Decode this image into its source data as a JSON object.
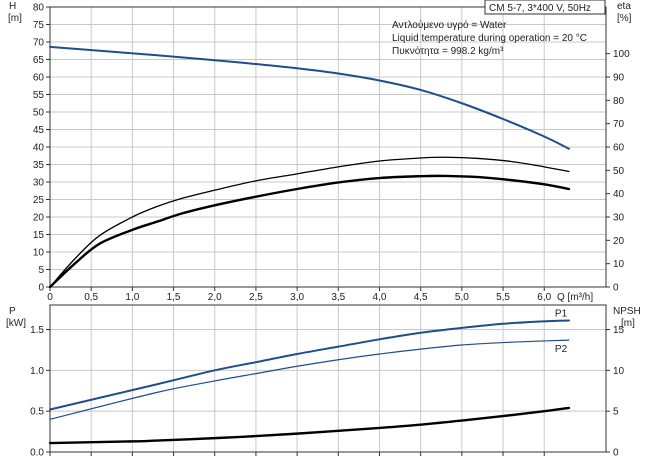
{
  "chart_data": [
    {
      "type": "line",
      "title": "CM 5-7, 3*400 V, 50Hz",
      "annotations": [
        "Αντλούμενο υγρό = Water",
        "Liquid temperature during operation = 20 °C",
        "Πυκνότητα = 998.2 kg/m³"
      ],
      "xlabel": "Q [m³/h]",
      "xlim": [
        0,
        6.75
      ],
      "x_ticks": [
        "0",
        "0,5",
        "1,0",
        "1,5",
        "2,0",
        "2,5",
        "3,0",
        "3,5",
        "4,0",
        "4,5",
        "5,0",
        "5,5",
        "6,0"
      ],
      "y_left": {
        "label": "H",
        "unit": "[m]",
        "ylim": [
          0,
          80
        ],
        "ticks": [
          "0",
          "5",
          "10",
          "15",
          "20",
          "25",
          "30",
          "35",
          "40",
          "45",
          "50",
          "55",
          "60",
          "65",
          "70",
          "75",
          "80"
        ]
      },
      "y_right": {
        "label": "eta",
        "unit": "[%]",
        "ylim": [
          0,
          120
        ],
        "ticks": [
          "0",
          "10",
          "20",
          "30",
          "40",
          "50",
          "60",
          "70",
          "80",
          "90",
          "100"
        ]
      },
      "grid": true,
      "series": [
        {
          "axis": "left",
          "color": "#1f4e8c",
          "width": 2,
          "style": "solid",
          "x": [
            0,
            1.3,
            2,
            2.5,
            3,
            3.5,
            4,
            4.5,
            5,
            5.5,
            6,
            6.3
          ],
          "y": [
            68.6,
            66.2,
            64.8,
            63.7,
            62.5,
            61.0,
            59.0,
            56.3,
            52.5,
            48.0,
            43.0,
            39.5
          ]
        },
        {
          "axis": "right",
          "color": "#000000",
          "width": 1.3,
          "style": "solid",
          "x": [
            0,
            0.3,
            0.6,
            1.0,
            1.3,
            1.6,
            2.0,
            2.5,
            3.0,
            3.5,
            4.0,
            4.5,
            4.8,
            5.2,
            5.6,
            6.0,
            6.3
          ],
          "y": [
            0,
            12,
            22,
            30,
            34.5,
            38,
            41.5,
            45.5,
            48.5,
            51.5,
            54,
            55.3,
            55.6,
            55.1,
            53.8,
            51.5,
            49.5
          ]
        },
        {
          "axis": "right",
          "color": "#000000",
          "width": 2.4,
          "style": "solid",
          "x": [
            0,
            0.3,
            0.6,
            1.0,
            1.3,
            1.6,
            2.0,
            2.5,
            3.0,
            3.5,
            4.0,
            4.5,
            4.8,
            5.2,
            5.6,
            6.0,
            6.3
          ],
          "y": [
            0,
            10,
            18.5,
            24.5,
            28,
            31.5,
            35,
            38.7,
            42,
            44.8,
            46.7,
            47.5,
            47.6,
            47.1,
            45.8,
            44.0,
            42.0
          ]
        }
      ]
    },
    {
      "type": "line",
      "xlim": [
        0,
        6.75
      ],
      "y_left": {
        "label": "P",
        "unit": "[kW]",
        "ylim": [
          0,
          1.8
        ],
        "ticks": [
          "0.0",
          "0.5",
          "1.0",
          "1.5"
        ]
      },
      "y_right": {
        "label": "NPSH",
        "unit": "[m]",
        "ylim": [
          0,
          18
        ],
        "ticks": [
          "0",
          "5",
          "10",
          "15"
        ]
      },
      "grid": true,
      "series": [
        {
          "name": "P1",
          "axis": "left",
          "color": "#1f4e8c",
          "width": 2,
          "x": [
            0,
            1.3,
            2,
            2.5,
            3,
            3.5,
            4,
            4.5,
            5,
            5.5,
            6,
            6.3
          ],
          "y": [
            0.52,
            0.83,
            1.0,
            1.1,
            1.2,
            1.29,
            1.38,
            1.46,
            1.52,
            1.57,
            1.6,
            1.61
          ]
        },
        {
          "name": "P2",
          "axis": "left",
          "color": "#1f4e8c",
          "width": 1.2,
          "x": [
            0,
            1.3,
            2,
            2.5,
            3,
            3.5,
            4,
            4.5,
            5,
            5.5,
            6,
            6.3
          ],
          "y": [
            0.4,
            0.73,
            0.87,
            0.96,
            1.05,
            1.13,
            1.2,
            1.26,
            1.31,
            1.34,
            1.36,
            1.37
          ]
        },
        {
          "axis": "right",
          "color": "#000000",
          "width": 2.4,
          "x": [
            0,
            1.0,
            1.3,
            2,
            2.5,
            3,
            3.5,
            4,
            4.5,
            5,
            5.5,
            6,
            6.3
          ],
          "y": [
            1.1,
            1.3,
            1.4,
            1.7,
            1.95,
            2.25,
            2.6,
            2.95,
            3.35,
            3.85,
            4.4,
            5.0,
            5.4
          ]
        }
      ]
    }
  ]
}
